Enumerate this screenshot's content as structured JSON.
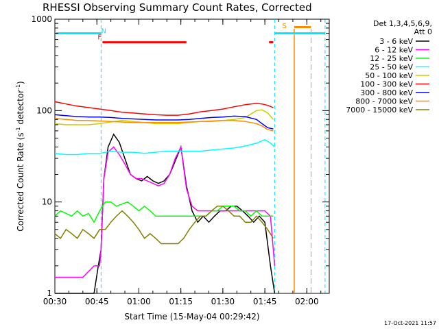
{
  "chart_data": {
    "type": "line",
    "title": "RHESSI Observing Summary Count Rates, Corrected",
    "xlabel": "Start Time (15-May-04 00:29:42)",
    "ylabel_main": "Corrected Count Rate (s",
    "ylabel_sup1": "-1",
    "ylabel_mid": " detector",
    "ylabel_sup2": "-1",
    "ylabel_end": ")",
    "y_scale": "log",
    "ylim": [
      1,
      1000
    ],
    "xlim_minutes": [
      30,
      128
    ],
    "x_tick_minutes": [
      30,
      45,
      60,
      75,
      90,
      105,
      120
    ],
    "x_tick_labels": [
      "00:30",
      "00:45",
      "01:00",
      "01:15",
      "01:30",
      "01:45",
      "02:00"
    ],
    "y_tick_values": [
      1,
      10,
      100,
      1000
    ],
    "y_tick_labels": [
      "1",
      "10",
      "100",
      "1000"
    ],
    "legend_header": [
      "Det 1,3,4,5,6,9,",
      "Att 0"
    ],
    "legend_placement": "right",
    "timestamp": "17-Oct-2021 11:57",
    "night_boundaries_minutes": [
      46.5,
      108.5,
      126.5
    ],
    "flare_marker_minutes": [
      115.5,
      121.5
    ],
    "annotations": {
      "F": {
        "label": "F",
        "color": "#ff0000",
        "x_minutes": 46,
        "y": 600
      },
      "N": {
        "label": "N",
        "color": "#00e5ff",
        "x_minutes": 47.5,
        "y": 700
      },
      "S": {
        "label": "S",
        "color": "#ff8c00",
        "x_minutes": 112,
        "y": 800
      }
    },
    "bars": [
      {
        "name": "flare-bar",
        "color": "#ff0000",
        "x": [
          47,
          77
        ],
        "y": 560
      },
      {
        "name": "flare-bar-2",
        "color": "#ff0000",
        "x": [
          106.5,
          108
        ],
        "y": 560
      },
      {
        "name": "saa-bar",
        "color": "#ff8c00",
        "x": [
          115.5,
          121.5
        ],
        "y": 820
      },
      {
        "name": "night-bar-1",
        "color": "#00e5ff",
        "x": [
          30,
          46.5
        ],
        "y": 700
      },
      {
        "name": "night-bar-2",
        "color": "#00e5ff",
        "x": [
          108.5,
          126.5
        ],
        "y": 700
      }
    ],
    "series": [
      {
        "name": "3 - 6 keV",
        "color": "#000000",
        "x": [
          30,
          40,
          44,
          45.5,
          46.5,
          47.5,
          49,
          51,
          53,
          55,
          57,
          59,
          61,
          63,
          65,
          67,
          69,
          71,
          73,
          75,
          77,
          79,
          81,
          83,
          85,
          87,
          89,
          91,
          93,
          95,
          97,
          99,
          101,
          103,
          105,
          107,
          108.5
        ],
        "y": [
          1,
          1,
          1,
          2,
          3,
          18,
          40,
          55,
          45,
          30,
          20,
          18,
          17,
          19,
          17,
          16,
          17,
          20,
          28,
          40,
          15,
          8,
          6,
          7,
          6,
          7,
          8,
          8,
          9,
          9,
          8,
          7,
          6,
          7,
          6,
          2,
          1
        ]
      },
      {
        "name": "6 - 12 keV",
        "color": "#ff00ff",
        "x": [
          30,
          40,
          44,
          46,
          46.5,
          47.5,
          49,
          51,
          53,
          55,
          57,
          59,
          61,
          63,
          65,
          67,
          69,
          71,
          73,
          75,
          77,
          79,
          81,
          83,
          85,
          87,
          89,
          91,
          93,
          95,
          97,
          99,
          101,
          103,
          105,
          107,
          108.5
        ],
        "y": [
          1.5,
          1.5,
          2,
          2,
          3,
          18,
          35,
          40,
          33,
          26,
          20,
          18,
          18,
          17,
          16,
          15,
          16,
          20,
          30,
          40,
          14,
          9,
          8,
          8,
          8,
          8,
          8,
          8,
          8,
          8,
          8,
          8,
          8,
          8,
          8,
          7,
          2
        ]
      },
      {
        "name": "12 - 25 keV",
        "color": "#00ff00",
        "x": [
          30,
          32,
          34,
          36,
          38,
          40,
          42,
          44,
          46,
          48,
          50,
          52,
          54,
          56,
          58,
          60,
          62,
          64,
          66,
          68,
          70,
          72,
          74,
          76,
          78,
          80,
          82,
          84,
          86,
          88,
          90,
          92,
          94,
          96,
          98,
          100,
          102,
          104,
          106,
          108
        ],
        "y": [
          7,
          8,
          7.5,
          7,
          8,
          7,
          7.5,
          6,
          8,
          10,
          10,
          9,
          9.5,
          10,
          9,
          8,
          9,
          8,
          7,
          7,
          7,
          7,
          7,
          7,
          7,
          7,
          7,
          7,
          8,
          8,
          9,
          9,
          9,
          8,
          8,
          7,
          8,
          7,
          7,
          7
        ]
      },
      {
        "name": "25 - 50 keV",
        "color": "#00ffff",
        "x": [
          30,
          34,
          38,
          42,
          46,
          50,
          54,
          58,
          62,
          66,
          70,
          74,
          78,
          82,
          86,
          90,
          94,
          98,
          102,
          105,
          107,
          108.5
        ],
        "y": [
          34,
          33,
          33,
          34,
          34,
          36,
          35,
          35,
          34,
          35,
          36,
          36,
          36,
          36,
          37,
          38,
          39,
          41,
          44,
          48,
          44,
          40
        ]
      },
      {
        "name": "50 - 100 keV",
        "color": "#cccc00",
        "x": [
          30,
          34,
          38,
          42,
          46,
          50,
          54,
          58,
          62,
          66,
          70,
          74,
          78,
          82,
          86,
          90,
          94,
          98,
          102,
          104,
          106,
          108
        ],
        "y": [
          72,
          70,
          70,
          70,
          72,
          75,
          78,
          76,
          74,
          72,
          72,
          72,
          74,
          76,
          76,
          78,
          80,
          84,
          100,
          102,
          94,
          80
        ]
      },
      {
        "name": "100 - 300 keV",
        "color": "#ff0000",
        "x": [
          30,
          34,
          38,
          42,
          46,
          50,
          54,
          58,
          62,
          66,
          70,
          74,
          78,
          82,
          86,
          90,
          94,
          98,
          102,
          104,
          106,
          108
        ],
        "y": [
          125,
          118,
          112,
          108,
          104,
          100,
          96,
          94,
          92,
          90,
          89,
          89,
          92,
          97,
          100,
          104,
          110,
          116,
          120,
          118,
          114,
          108
        ]
      },
      {
        "name": "300 - 800 keV",
        "color": "#0000ff",
        "x": [
          30,
          34,
          38,
          42,
          46,
          50,
          54,
          58,
          62,
          66,
          70,
          74,
          78,
          82,
          86,
          90,
          94,
          98,
          102,
          104,
          106,
          108
        ],
        "y": [
          90,
          88,
          86,
          85,
          85,
          84,
          82,
          81,
          80,
          79,
          79,
          79,
          80,
          82,
          84,
          85,
          87,
          86,
          80,
          72,
          65,
          63
        ]
      },
      {
        "name": "800 - 7000 keV",
        "color": "#ff8c00",
        "x": [
          30,
          34,
          38,
          42,
          46,
          50,
          54,
          58,
          62,
          66,
          70,
          74,
          78,
          82,
          86,
          90,
          94,
          98,
          102,
          104,
          106,
          108
        ],
        "y": [
          82,
          80,
          78,
          78,
          77,
          76,
          75,
          74,
          74,
          74,
          74,
          74,
          75,
          76,
          77,
          78,
          78,
          76,
          72,
          68,
          62,
          60
        ]
      },
      {
        "name": "7000 - 15000 keV",
        "color": "#808000",
        "x": [
          30,
          32,
          34,
          36,
          38,
          40,
          42,
          44,
          46,
          48,
          50,
          52,
          54,
          56,
          58,
          60,
          62,
          64,
          66,
          68,
          70,
          72,
          74,
          76,
          78,
          80,
          82,
          84,
          86,
          88,
          90,
          92,
          94,
          96,
          98,
          100,
          102,
          104,
          106,
          108
        ],
        "y": [
          4.5,
          4,
          5,
          4.5,
          4,
          5,
          4.5,
          4,
          5,
          5,
          6,
          7,
          8,
          7,
          6,
          5,
          4,
          4.5,
          4,
          3.5,
          3.5,
          3.5,
          3.5,
          4,
          5,
          6,
          7,
          7,
          8,
          9,
          9,
          8,
          7,
          7,
          6,
          6,
          7,
          6,
          5,
          4
        ]
      }
    ]
  }
}
